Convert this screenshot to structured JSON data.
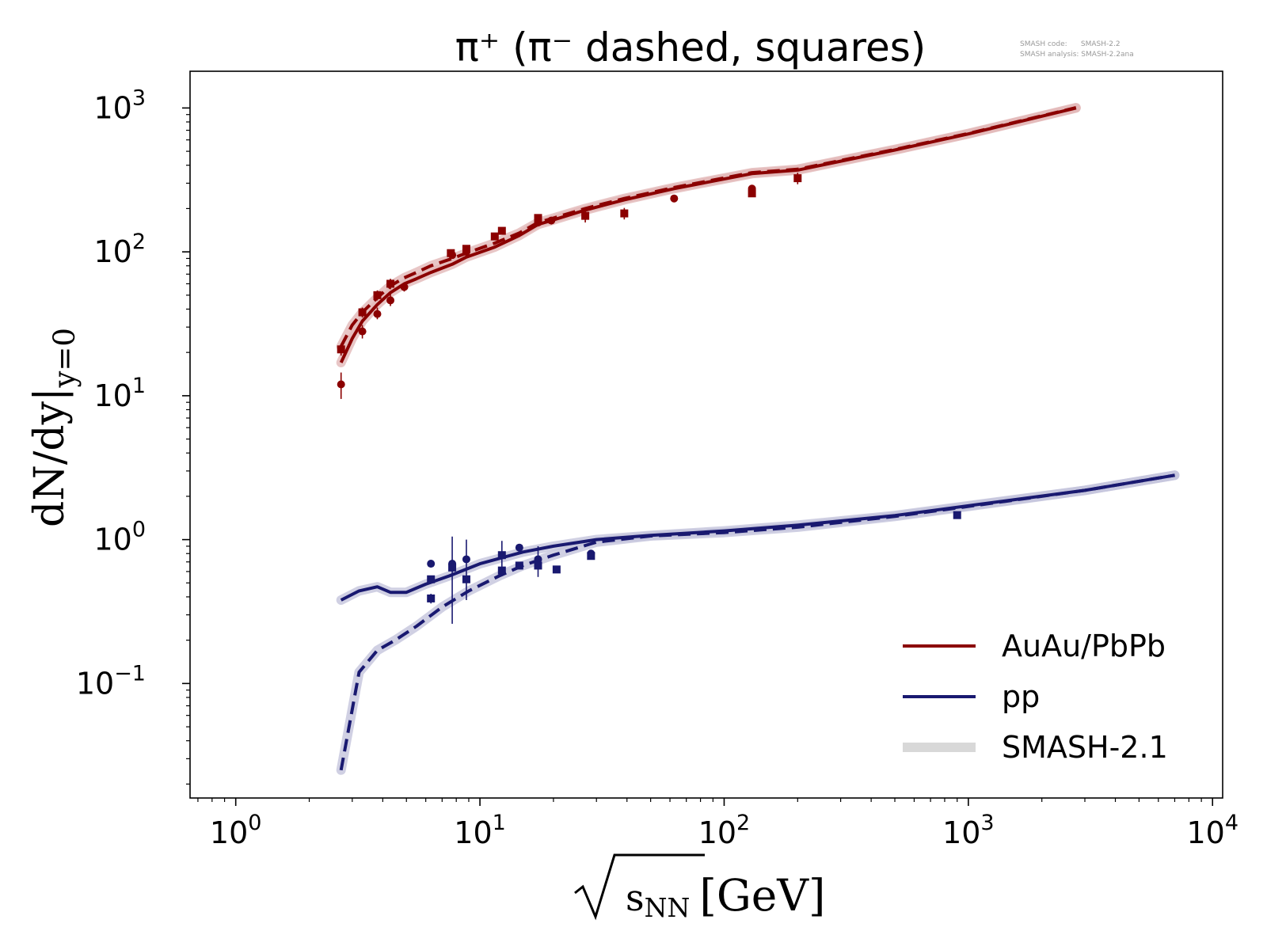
{
  "watermark": {
    "line1": "SMASH code:      SMASH-2.2",
    "line2": "SMASH analysis: SMASH-2.2ana"
  },
  "colors": {
    "auau": "#8b0000",
    "pp": "#191970",
    "smash21": "#d8d8d8",
    "smash21_auau": "#e2b8b8",
    "smash21_pp": "#c4c4dc"
  },
  "chart_data": {
    "type": "line",
    "title": "π⁺ (π⁻ dashed, squares)",
    "xlabel_radicand": "s",
    "xlabel_sub": "NN",
    "xlabel_unit": "[GeV]",
    "ylabel_main": "dN/dy|",
    "ylabel_sub": "y=0",
    "xscale": "log",
    "yscale": "log",
    "xlim": [
      0.65,
      11000
    ],
    "ylim": [
      0.016,
      1800
    ],
    "x_ticks": [
      {
        "value": 1,
        "base": "10",
        "exp": "0"
      },
      {
        "value": 10,
        "base": "10",
        "exp": "1"
      },
      {
        "value": 100,
        "base": "10",
        "exp": "2"
      },
      {
        "value": 1000,
        "base": "10",
        "exp": "3"
      },
      {
        "value": 10000,
        "base": "10",
        "exp": "4"
      }
    ],
    "y_ticks": [
      {
        "value": 0.1,
        "base": "10",
        "exp": "−1"
      },
      {
        "value": 1,
        "base": "10",
        "exp": "0"
      },
      {
        "value": 10,
        "base": "10",
        "exp": "1"
      },
      {
        "value": 100,
        "base": "10",
        "exp": "2"
      },
      {
        "value": 1000,
        "base": "10",
        "exp": "3"
      }
    ],
    "grid": false,
    "legend_position": "lower-right",
    "legend": [
      {
        "label": "AuAu/PbPb",
        "color": "#8b0000"
      },
      {
        "label": "pp",
        "color": "#191970"
      },
      {
        "label": "SMASH-2.1",
        "color": "#d8d8d8"
      }
    ],
    "series": [
      {
        "system": "auau",
        "style": "solid",
        "points": [
          [
            2.7,
            17
          ],
          [
            3.0,
            25
          ],
          [
            3.3,
            33
          ],
          [
            3.8,
            43
          ],
          [
            4.3,
            52
          ],
          [
            4.9,
            60
          ],
          [
            5.5,
            65
          ],
          [
            6.3,
            72
          ],
          [
            7.7,
            82
          ],
          [
            8.8,
            92
          ],
          [
            11.5,
            108
          ],
          [
            14.5,
            130
          ],
          [
            17.3,
            155
          ],
          [
            19.6,
            165
          ],
          [
            27,
            195
          ],
          [
            39,
            230
          ],
          [
            62.4,
            275
          ],
          [
            130,
            350
          ],
          [
            200,
            370
          ],
          [
            500,
            510
          ],
          [
            1000,
            660
          ],
          [
            2760,
            1000
          ]
        ]
      },
      {
        "system": "auau",
        "style": "dashed",
        "points": [
          [
            2.7,
            22
          ],
          [
            3.0,
            31
          ],
          [
            3.3,
            38
          ],
          [
            3.8,
            48
          ],
          [
            4.3,
            58
          ],
          [
            4.9,
            66
          ],
          [
            5.5,
            72
          ],
          [
            6.3,
            80
          ],
          [
            7.7,
            90
          ],
          [
            8.8,
            98
          ],
          [
            11.5,
            115
          ],
          [
            14.5,
            135
          ],
          [
            17.3,
            160
          ],
          [
            19.6,
            170
          ],
          [
            27,
            200
          ],
          [
            39,
            235
          ],
          [
            62.4,
            280
          ],
          [
            130,
            355
          ],
          [
            200,
            375
          ],
          [
            500,
            515
          ],
          [
            1000,
            665
          ],
          [
            2760,
            1005
          ]
        ]
      },
      {
        "system": "pp",
        "style": "solid",
        "points": [
          [
            2.7,
            0.38
          ],
          [
            3.2,
            0.44
          ],
          [
            3.8,
            0.47
          ],
          [
            4.3,
            0.43
          ],
          [
            5.0,
            0.43
          ],
          [
            6.0,
            0.49
          ],
          [
            7.5,
            0.56
          ],
          [
            10,
            0.68
          ],
          [
            15,
            0.82
          ],
          [
            20,
            0.9
          ],
          [
            30,
            1.0
          ],
          [
            50,
            1.07
          ],
          [
            100,
            1.15
          ],
          [
            200,
            1.26
          ],
          [
            500,
            1.47
          ],
          [
            1000,
            1.72
          ],
          [
            3000,
            2.2
          ],
          [
            7000,
            2.8
          ]
        ]
      },
      {
        "system": "pp",
        "style": "dashed",
        "points": [
          [
            2.7,
            0.025
          ],
          [
            3.2,
            0.12
          ],
          [
            3.8,
            0.17
          ],
          [
            4.5,
            0.2
          ],
          [
            5.5,
            0.25
          ],
          [
            7.0,
            0.34
          ],
          [
            9,
            0.44
          ],
          [
            12,
            0.56
          ],
          [
            15,
            0.66
          ],
          [
            20,
            0.78
          ],
          [
            30,
            0.96
          ],
          [
            50,
            1.06
          ],
          [
            100,
            1.12
          ],
          [
            200,
            1.22
          ],
          [
            500,
            1.45
          ],
          [
            1000,
            1.7
          ],
          [
            3000,
            2.2
          ],
          [
            7000,
            2.8
          ]
        ]
      }
    ],
    "data_points": [
      {
        "system": "auau",
        "marker": "circle",
        "x": 2.7,
        "y": 12,
        "err": [
          9.5,
          14.5
        ]
      },
      {
        "system": "auau",
        "marker": "square",
        "x": 2.7,
        "y": 21,
        "err": [
          19,
          23
        ]
      },
      {
        "system": "auau",
        "marker": "circle",
        "x": 3.3,
        "y": 28,
        "err": [
          25,
          31
        ]
      },
      {
        "system": "auau",
        "marker": "square",
        "x": 3.3,
        "y": 38,
        "err": [
          35,
          41
        ]
      },
      {
        "system": "auau",
        "marker": "circle",
        "x": 3.8,
        "y": 37,
        "err": [
          34,
          41
        ]
      },
      {
        "system": "auau",
        "marker": "square",
        "x": 3.8,
        "y": 50,
        "err": [
          46,
          54
        ]
      },
      {
        "system": "auau",
        "marker": "circle",
        "x": 4.3,
        "y": 46,
        "err": [
          42,
          51
        ]
      },
      {
        "system": "auau",
        "marker": "square",
        "x": 4.3,
        "y": 60,
        "err": [
          55,
          65
        ]
      },
      {
        "system": "auau",
        "marker": "circle",
        "x": 4.9,
        "y": 57,
        "err": [
          53,
          61
        ]
      },
      {
        "system": "auau",
        "marker": "square",
        "x": 7.6,
        "y": 98,
        "err": [
          92,
          104
        ]
      },
      {
        "system": "auau",
        "marker": "circle",
        "x": 7.7,
        "y": 95,
        "err": [
          90,
          100
        ]
      },
      {
        "system": "auau",
        "marker": "square",
        "x": 8.8,
        "y": 105,
        "err": [
          99,
          111
        ]
      },
      {
        "system": "auau",
        "marker": "circle",
        "x": 8.8,
        "y": 100,
        "err": [
          95,
          105
        ]
      },
      {
        "system": "auau",
        "marker": "square",
        "x": 11.5,
        "y": 128,
        "err": [
          121,
          135
        ]
      },
      {
        "system": "auau",
        "marker": "square",
        "x": 12.3,
        "y": 140,
        "err": [
          132,
          148
        ]
      },
      {
        "system": "auau",
        "marker": "circle",
        "x": 17.3,
        "y": 160,
        "err": [
          150,
          170
        ]
      },
      {
        "system": "auau",
        "marker": "square",
        "x": 17.3,
        "y": 172,
        "err": [
          162,
          182
        ]
      },
      {
        "system": "auau",
        "marker": "circle",
        "x": 19.6,
        "y": 165,
        "err": [
          155,
          175
        ]
      },
      {
        "system": "auau",
        "marker": "square",
        "x": 27,
        "y": 178,
        "err": [
          160,
          196
        ]
      },
      {
        "system": "auau",
        "marker": "square",
        "x": 39,
        "y": 185,
        "err": [
          168,
          202
        ]
      },
      {
        "system": "auau",
        "marker": "circle",
        "x": 62.4,
        "y": 235,
        "err": [
          228,
          242
        ]
      },
      {
        "system": "auau",
        "marker": "circle",
        "x": 130,
        "y": 275,
        "err": [
          262,
          288
        ]
      },
      {
        "system": "auau",
        "marker": "square",
        "x": 130,
        "y": 255,
        "err": [
          243,
          267
        ]
      },
      {
        "system": "auau",
        "marker": "square",
        "x": 200,
        "y": 325,
        "err": [
          295,
          355
        ]
      },
      {
        "system": "pp",
        "marker": "square",
        "x": 6.3,
        "y": 0.39,
        "err": [
          0.36,
          0.42
        ]
      },
      {
        "system": "pp",
        "marker": "square",
        "x": 6.3,
        "y": 0.53,
        "err": [
          0.5,
          0.56
        ]
      },
      {
        "system": "pp",
        "marker": "circle",
        "x": 6.3,
        "y": 0.68,
        "err": [
          0.64,
          0.72
        ]
      },
      {
        "system": "pp",
        "marker": "circle",
        "x": 7.7,
        "y": 0.68,
        "err": [
          0.26,
          1.05
        ]
      },
      {
        "system": "pp",
        "marker": "square",
        "x": 7.7,
        "y": 0.64,
        "err": [
          0.6,
          0.68
        ]
      },
      {
        "system": "pp",
        "marker": "circle",
        "x": 8.8,
        "y": 0.73,
        "err": [
          0.38,
          1.0
        ]
      },
      {
        "system": "pp",
        "marker": "square",
        "x": 8.8,
        "y": 0.53,
        "err": [
          0.5,
          0.56
        ]
      },
      {
        "system": "pp",
        "marker": "square",
        "x": 12.3,
        "y": 0.61,
        "err": [
          0.58,
          0.64
        ]
      },
      {
        "system": "pp",
        "marker": "square",
        "x": 12.3,
        "y": 0.78,
        "err": [
          0.6,
          0.98
        ]
      },
      {
        "system": "pp",
        "marker": "circle",
        "x": 14.5,
        "y": 0.88,
        "err": [
          0.84,
          0.92
        ]
      },
      {
        "system": "pp",
        "marker": "square",
        "x": 14.5,
        "y": 0.66,
        "err": [
          0.63,
          0.69
        ]
      },
      {
        "system": "pp",
        "marker": "circle",
        "x": 17.3,
        "y": 0.73,
        "err": [
          0.55,
          0.9
        ]
      },
      {
        "system": "pp",
        "marker": "square",
        "x": 17.3,
        "y": 0.66,
        "err": [
          0.62,
          0.7
        ]
      },
      {
        "system": "pp",
        "marker": "square",
        "x": 20.6,
        "y": 0.62,
        "err": [
          0.59,
          0.65
        ]
      },
      {
        "system": "pp",
        "marker": "circle",
        "x": 28.5,
        "y": 0.8,
        "err": [
          0.76,
          0.84
        ]
      },
      {
        "system": "pp",
        "marker": "square",
        "x": 28.5,
        "y": 0.77,
        "err": [
          0.73,
          0.81
        ]
      },
      {
        "system": "pp",
        "marker": "square",
        "x": 900,
        "y": 1.48,
        "err": [
          1.42,
          1.54
        ]
      }
    ]
  }
}
